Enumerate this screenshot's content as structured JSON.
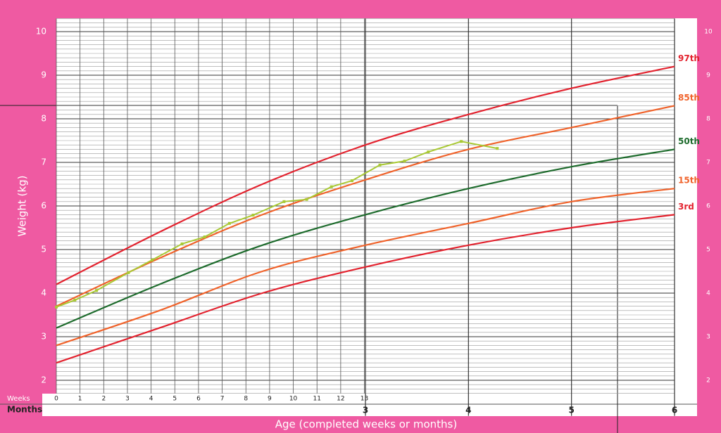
{
  "chart_data": {
    "type": "line",
    "y_title": "Weight (kg)",
    "x_title": "Age (completed weeks or months)",
    "weeks_label": "Weeks",
    "months_label": "Months",
    "x": [
      0,
      1,
      2,
      3,
      4,
      5,
      6
    ],
    "xlim": [
      0,
      6
    ],
    "ylim": [
      1.7,
      10.3
    ],
    "yticks": [
      2,
      3,
      4,
      5,
      6,
      7,
      8,
      9,
      10
    ],
    "minor_grid": 0.1,
    "xticks": [
      {
        "value": 0,
        "label": "0"
      },
      {
        "value": 0.23,
        "label": "1"
      },
      {
        "value": 0.46,
        "label": "2"
      },
      {
        "value": 0.69,
        "label": "3"
      },
      {
        "value": 0.92,
        "label": "4"
      },
      {
        "value": 1.15,
        "label": "5"
      },
      {
        "value": 1.38,
        "label": "6"
      },
      {
        "value": 1.61,
        "label": "7"
      },
      {
        "value": 1.84,
        "label": "8"
      },
      {
        "value": 2.07,
        "label": "9"
      },
      {
        "value": 2.3,
        "label": "10"
      },
      {
        "value": 2.53,
        "label": "11"
      },
      {
        "value": 2.76,
        "label": "12"
      },
      {
        "value": 2.99,
        "label": "13"
      }
    ],
    "month_ticks": [
      3,
      4,
      5,
      6
    ],
    "series": [
      {
        "name": "97th",
        "color": "#e3222e",
        "values": [
          4.2,
          5.4,
          6.5,
          7.4,
          8.1,
          8.7,
          9.2
        ]
      },
      {
        "name": "85th",
        "color": "#f0622a",
        "values": [
          3.7,
          4.8,
          5.8,
          6.6,
          7.3,
          7.8,
          8.3
        ]
      },
      {
        "name": "50th",
        "color": "#1d6b2c",
        "values": [
          3.2,
          4.2,
          5.1,
          5.8,
          6.4,
          6.9,
          7.3
        ]
      },
      {
        "name": "15th",
        "color": "#f0622a",
        "values": [
          2.8,
          3.6,
          4.5,
          5.1,
          5.6,
          6.1,
          6.4
        ]
      },
      {
        "name": "3rd",
        "color": "#e3222e",
        "values": [
          2.4,
          3.2,
          4.0,
          4.6,
          5.1,
          5.5,
          5.8
        ]
      }
    ],
    "measurements": {
      "color": "#a9c934",
      "x": [
        0,
        0.18,
        0.39,
        0.7,
        0.93,
        1.22,
        1.44,
        1.68,
        1.91,
        2.21,
        2.43,
        2.67,
        2.87,
        3.14,
        3.38,
        3.61,
        3.93,
        4.28
      ],
      "values": [
        3.68,
        3.84,
        4.06,
        4.47,
        4.76,
        5.13,
        5.29,
        5.6,
        5.79,
        6.1,
        6.15,
        6.44,
        6.58,
        6.94,
        7.03,
        7.24,
        7.48,
        7.32
      ]
    }
  }
}
